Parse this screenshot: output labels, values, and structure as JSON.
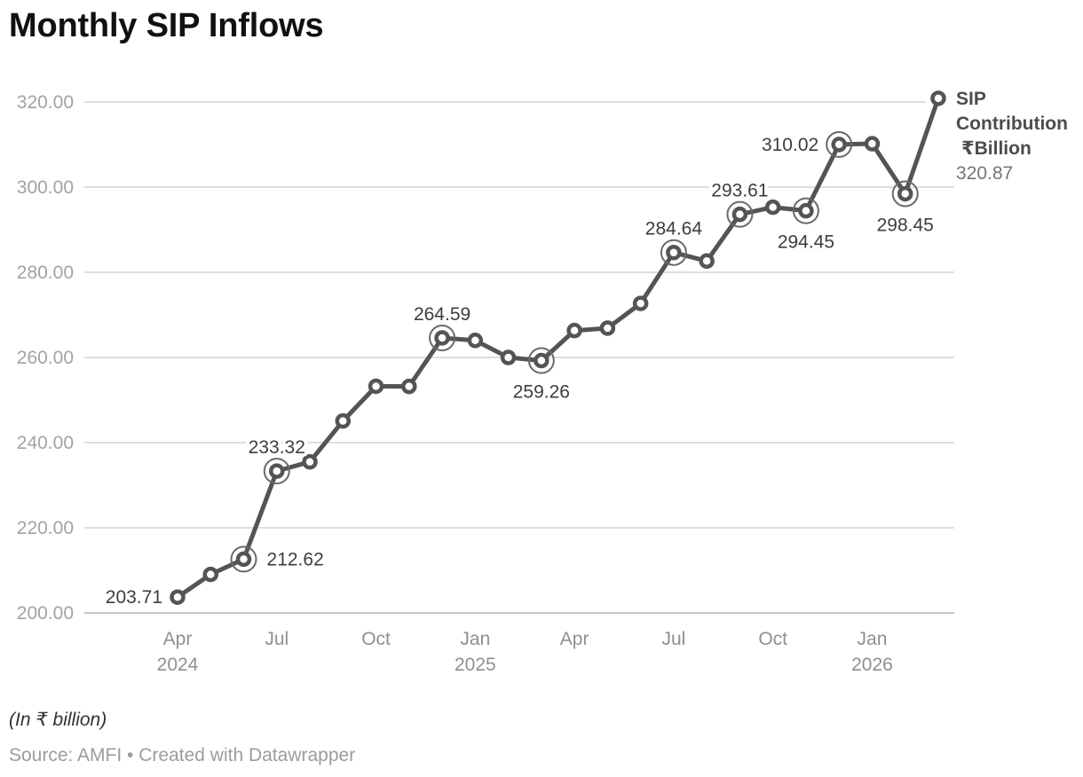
{
  "header": {
    "title": "Monthly SIP Inflows"
  },
  "footer": {
    "note": "(In ₹ billion)",
    "source": "Source: AMFI • Created with Datawrapper"
  },
  "colors": {
    "title": "#111111",
    "line": "#545454",
    "marker_fill": "#ffffff",
    "ring": "#696969",
    "grid": "#dedede",
    "grid_baseline": "#c8c8c8",
    "y_tick_label": "#a3a3a3",
    "x_tick_label": "#8f8f8f",
    "data_label": "#3d3d3d",
    "legend_name": "#4c4c4c",
    "legend_value": "#757575",
    "note": "#333333",
    "source": "#9c9c9c"
  },
  "chart_data": {
    "type": "line",
    "title": "Monthly SIP Inflows",
    "xlabel": "",
    "ylabel": "SIP Contribution ₹Billion",
    "unit_note": "(In ₹ billion)",
    "ylim": [
      200,
      320
    ],
    "grid": true,
    "legend_position": "right-of-last-point",
    "x": [
      "Apr 2024",
      "May 2024",
      "Jun 2024",
      "Jul 2024",
      "Aug 2024",
      "Sep 2024",
      "Oct 2024",
      "Nov 2024",
      "Dec 2024",
      "Jan 2025",
      "Feb 2025",
      "Mar 2025",
      "Apr 2025",
      "May 2025",
      "Jun 2025",
      "Jul 2025",
      "Aug 2025",
      "Sep 2025",
      "Oct 2025",
      "Nov 2025",
      "Dec 2025",
      "Jan 2026",
      "Feb 2026",
      "Mar 2026"
    ],
    "series": [
      {
        "name": "SIP Contribution ₹Billion",
        "values": [
          203.71,
          209.04,
          212.62,
          233.32,
          235.47,
          245.09,
          253.23,
          253.2,
          264.59,
          264.0,
          259.99,
          259.26,
          266.32,
          266.88,
          272.69,
          284.64,
          282.65,
          293.61,
          295.29,
          294.45,
          310.02,
          310.2,
          298.45,
          320.87
        ]
      }
    ],
    "yticks": [
      {
        "v": 200,
        "label": "200.00"
      },
      {
        "v": 220,
        "label": "220.00"
      },
      {
        "v": 240,
        "label": "240.00"
      },
      {
        "v": 260,
        "label": "260.00"
      },
      {
        "v": 280,
        "label": "280.00"
      },
      {
        "v": 300,
        "label": "300.00"
      },
      {
        "v": 320,
        "label": "320.00"
      }
    ],
    "xticks": [
      {
        "index": 0,
        "line1": "Apr",
        "line2": "2024"
      },
      {
        "index": 3,
        "line1": "Jul",
        "line2": ""
      },
      {
        "index": 6,
        "line1": "Oct",
        "line2": ""
      },
      {
        "index": 9,
        "line1": "Jan",
        "line2": "2025"
      },
      {
        "index": 12,
        "line1": "Apr",
        "line2": ""
      },
      {
        "index": 15,
        "line1": "Jul",
        "line2": ""
      },
      {
        "index": 18,
        "line1": "Oct",
        "line2": ""
      },
      {
        "index": 21,
        "line1": "Jan",
        "line2": "2026"
      }
    ],
    "point_labels": [
      {
        "index": 0,
        "text": "203.71",
        "placement": "left",
        "ring": false
      },
      {
        "index": 2,
        "text": "212.62",
        "placement": "right",
        "ring": true
      },
      {
        "index": 3,
        "text": "233.32",
        "placement": "above",
        "ring": true
      },
      {
        "index": 8,
        "text": "264.59",
        "placement": "above",
        "ring": true
      },
      {
        "index": 11,
        "text": "259.26",
        "placement": "below",
        "ring": true
      },
      {
        "index": 15,
        "text": "284.64",
        "placement": "above",
        "ring": true
      },
      {
        "index": 17,
        "text": "293.61",
        "placement": "above",
        "ring": true
      },
      {
        "index": 19,
        "text": "294.45",
        "placement": "below",
        "ring": true
      },
      {
        "index": 20,
        "text": "310.02",
        "placement": "left",
        "ring": true
      },
      {
        "index": 22,
        "text": "298.45",
        "placement": "below",
        "ring": true
      }
    ],
    "legend": {
      "lines": [
        "SIP",
        "Contribution",
        " ₹Billion"
      ],
      "value": "320.87"
    }
  }
}
